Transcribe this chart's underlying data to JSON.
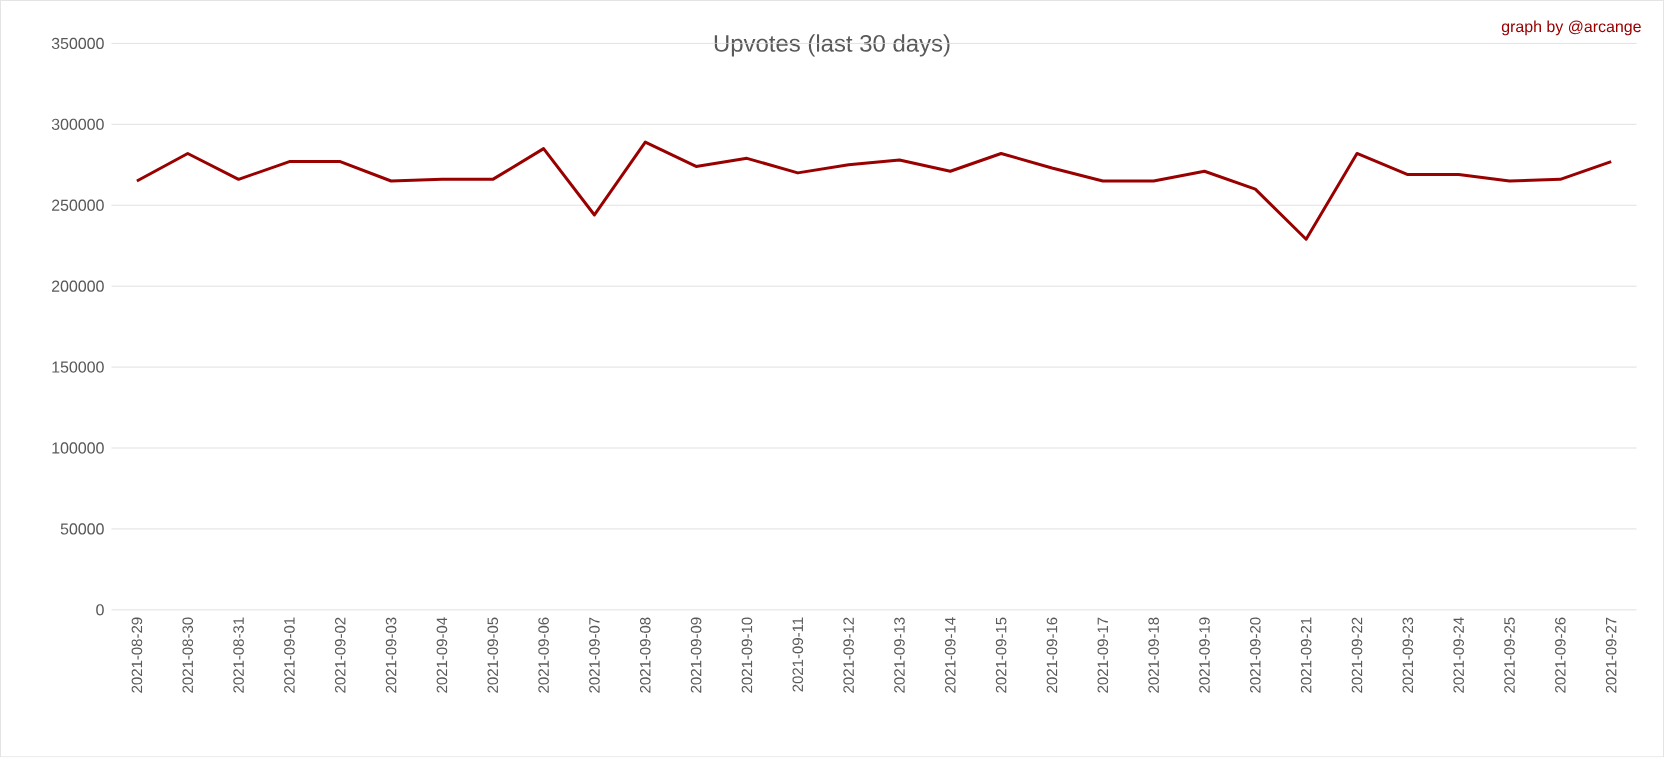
{
  "chart_data": {
    "type": "line",
    "title": "Upvotes (last 30 days)",
    "annotations": [
      "graph by @arcange"
    ],
    "categories": [
      "2021-08-29",
      "2021-08-30",
      "2021-08-31",
      "2021-09-01",
      "2021-09-02",
      "2021-09-03",
      "2021-09-04",
      "2021-09-05",
      "2021-09-06",
      "2021-09-07",
      "2021-09-08",
      "2021-09-09",
      "2021-09-10",
      "2021-09-11",
      "2021-09-12",
      "2021-09-13",
      "2021-09-14",
      "2021-09-15",
      "2021-09-16",
      "2021-09-17",
      "2021-09-18",
      "2021-09-19",
      "2021-09-20",
      "2021-09-21",
      "2021-09-22",
      "2021-09-23",
      "2021-09-24",
      "2021-09-25",
      "2021-09-26",
      "2021-09-27"
    ],
    "series": [
      {
        "color": "#990000",
        "values": [
          265000,
          282000,
          266000,
          277000,
          277000,
          265000,
          266000,
          266000,
          285000,
          244000,
          289000,
          274000,
          279000,
          270000,
          275000,
          278000,
          271000,
          282000,
          273000,
          265000,
          265000,
          271000,
          260000,
          229000,
          282000,
          269000,
          269000,
          265000,
          266000,
          277000
        ]
      }
    ],
    "ylim": [
      0,
      350000
    ],
    "yticks": [
      0,
      50000,
      100000,
      150000,
      200000,
      250000,
      300000,
      350000
    ],
    "grid": "y",
    "marker": "none",
    "line_style": "solid"
  }
}
